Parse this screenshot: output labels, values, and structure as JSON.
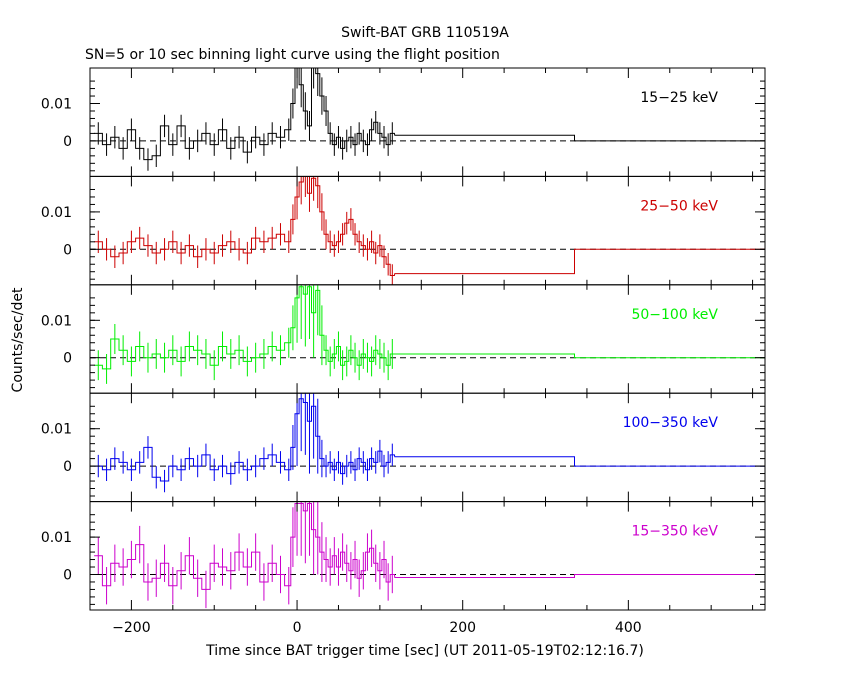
{
  "title": "Swift-BAT GRB 110519A",
  "subtitle": "SN=5 or 10 sec binning light curve using the flight position",
  "ylabel": "Counts/sec/det",
  "xlabel": "Time since BAT trigger time [sec] (UT 2011-05-19T02:12:16.7)",
  "chart_data": {
    "type": "line",
    "title": "Swift-BAT GRB 110519A",
    "subtitle": "SN=5 or 10 sec binning light curve using the flight position",
    "xlabel": "Time since BAT trigger time [sec] (UT 2011-05-19T02:12:16.7)",
    "ylabel": "Counts/sec/det",
    "xlim": [
      -250,
      565
    ],
    "ylim": [
      -0.0095,
      0.0195
    ],
    "x_ticks": [
      -200,
      0,
      200,
      400
    ],
    "y_ticks": [
      0,
      0.01
    ],
    "y_tick_labels": [
      "0",
      "0.01"
    ],
    "reference_line": 0,
    "panels": [
      {
        "name": "15-25 keV",
        "label": "15−25 keV",
        "color": "#000000",
        "long_bins": [
          [
            118,
            335,
            0.0015
          ],
          [
            335,
            565,
            0.0
          ]
        ],
        "x": [
          -240,
          -230,
          -220,
          -210,
          -200,
          -190,
          -180,
          -170,
          -160,
          -150,
          -140,
          -130,
          -120,
          -110,
          -100,
          -90,
          -80,
          -70,
          -60,
          -50,
          -40,
          -30,
          -20,
          -10,
          -5,
          0,
          5,
          10,
          15,
          20,
          25,
          30,
          35,
          40,
          45,
          50,
          55,
          60,
          65,
          70,
          75,
          80,
          85,
          90,
          95,
          100,
          105,
          110,
          115
        ],
        "y": [
          0.002,
          -0.001,
          0.001,
          -0.002,
          0.003,
          -0.002,
          -0.005,
          -0.004,
          0.004,
          -0.001,
          0.004,
          -0.002,
          0.0,
          0.002,
          -0.001,
          0.003,
          -0.002,
          0.001,
          -0.003,
          0.001,
          -0.001,
          0.002,
          0.001,
          0.003,
          0.01,
          0.02,
          0.015,
          0.008,
          0.004,
          0.02,
          0.018,
          0.012,
          0.008,
          0.002,
          -0.001,
          0.001,
          -0.002,
          0.0,
          0.001,
          -0.001,
          0.002,
          0.0,
          -0.001,
          0.003,
          0.005,
          0.002,
          0.001,
          -0.001,
          0.002
        ],
        "err": [
          0.003,
          0.003,
          0.003,
          0.003,
          0.003,
          0.003,
          0.003,
          0.003,
          0.003,
          0.003,
          0.003,
          0.003,
          0.003,
          0.003,
          0.003,
          0.003,
          0.003,
          0.003,
          0.003,
          0.003,
          0.003,
          0.003,
          0.003,
          0.003,
          0.004,
          0.006,
          0.006,
          0.005,
          0.004,
          0.006,
          0.006,
          0.005,
          0.004,
          0.003,
          0.003,
          0.003,
          0.003,
          0.003,
          0.003,
          0.003,
          0.003,
          0.003,
          0.003,
          0.003,
          0.003,
          0.003,
          0.003,
          0.003,
          0.003
        ]
      },
      {
        "name": "25-50 keV",
        "label": "25−50 keV",
        "color": "#cc0000",
        "long_bins": [
          [
            118,
            335,
            -0.0065
          ],
          [
            335,
            565,
            0.0
          ]
        ],
        "x": [
          -240,
          -230,
          -220,
          -210,
          -200,
          -190,
          -180,
          -170,
          -160,
          -150,
          -140,
          -130,
          -120,
          -110,
          -100,
          -90,
          -80,
          -70,
          -60,
          -50,
          -40,
          -30,
          -20,
          -10,
          -5,
          0,
          5,
          10,
          15,
          20,
          25,
          30,
          35,
          40,
          45,
          50,
          55,
          60,
          65,
          70,
          75,
          80,
          85,
          90,
          95,
          100,
          105,
          110,
          115
        ],
        "y": [
          0.002,
          0.0,
          -0.002,
          -0.001,
          0.002,
          0.003,
          0.001,
          -0.001,
          0.0,
          0.002,
          -0.001,
          0.001,
          -0.002,
          0.0,
          -0.001,
          0.001,
          0.002,
          0.0,
          -0.001,
          0.003,
          0.002,
          0.003,
          0.004,
          0.002,
          0.008,
          0.014,
          0.018,
          0.02,
          0.015,
          0.019,
          0.017,
          0.01,
          0.004,
          0.002,
          0.001,
          0.002,
          0.004,
          0.007,
          0.008,
          0.004,
          0.002,
          0.001,
          0.0,
          0.002,
          -0.001,
          0.001,
          -0.002,
          -0.004,
          -0.007
        ],
        "err": [
          0.003,
          0.003,
          0.003,
          0.003,
          0.003,
          0.003,
          0.003,
          0.003,
          0.003,
          0.003,
          0.003,
          0.003,
          0.003,
          0.003,
          0.003,
          0.003,
          0.003,
          0.003,
          0.003,
          0.003,
          0.003,
          0.003,
          0.003,
          0.003,
          0.004,
          0.006,
          0.006,
          0.006,
          0.005,
          0.006,
          0.006,
          0.005,
          0.004,
          0.003,
          0.003,
          0.003,
          0.003,
          0.003,
          0.003,
          0.003,
          0.003,
          0.003,
          0.003,
          0.003,
          0.003,
          0.003,
          0.003,
          0.003,
          0.003
        ]
      },
      {
        "name": "50-100 keV",
        "label": "50−100 keV",
        "color": "#00ee00",
        "long_bins": [
          [
            118,
            335,
            0.001
          ],
          [
            335,
            565,
            0.0
          ]
        ],
        "x": [
          -240,
          -230,
          -220,
          -210,
          -200,
          -190,
          -180,
          -170,
          -160,
          -150,
          -140,
          -130,
          -120,
          -110,
          -100,
          -90,
          -80,
          -70,
          -60,
          -50,
          -40,
          -30,
          -20,
          -10,
          -5,
          0,
          5,
          10,
          15,
          20,
          25,
          30,
          35,
          40,
          45,
          50,
          55,
          60,
          65,
          70,
          75,
          80,
          85,
          90,
          95,
          100,
          105,
          110,
          115
        ],
        "y": [
          -0.002,
          -0.003,
          0.005,
          0.002,
          -0.001,
          0.003,
          0.0,
          0.001,
          0.0,
          0.002,
          -0.001,
          0.003,
          0.002,
          0.001,
          -0.002,
          0.003,
          0.001,
          0.002,
          -0.001,
          0.0,
          0.001,
          0.003,
          0.002,
          0.004,
          0.008,
          0.016,
          0.019,
          0.017,
          0.019,
          0.012,
          0.018,
          0.006,
          0.002,
          -0.001,
          0.001,
          0.003,
          -0.002,
          -0.001,
          0.002,
          0.0,
          -0.002,
          0.001,
          0.0,
          -0.001,
          0.002,
          0.001,
          0.0,
          -0.002,
          0.001
        ],
        "err": [
          0.004,
          0.004,
          0.004,
          0.004,
          0.004,
          0.004,
          0.004,
          0.004,
          0.004,
          0.004,
          0.004,
          0.004,
          0.004,
          0.004,
          0.004,
          0.004,
          0.004,
          0.004,
          0.004,
          0.004,
          0.004,
          0.004,
          0.004,
          0.004,
          0.006,
          0.012,
          0.014,
          0.014,
          0.014,
          0.012,
          0.012,
          0.008,
          0.004,
          0.004,
          0.004,
          0.004,
          0.004,
          0.004,
          0.004,
          0.004,
          0.004,
          0.004,
          0.004,
          0.004,
          0.004,
          0.004,
          0.004,
          0.004,
          0.004
        ]
      },
      {
        "name": "100-350 keV",
        "label": "100−350 keV",
        "color": "#0000ee",
        "long_bins": [
          [
            118,
            335,
            0.0025
          ],
          [
            335,
            565,
            0.0
          ]
        ],
        "x": [
          -240,
          -230,
          -220,
          -210,
          -200,
          -190,
          -180,
          -170,
          -160,
          -150,
          -140,
          -130,
          -120,
          -110,
          -100,
          -90,
          -80,
          -70,
          -60,
          -50,
          -40,
          -30,
          -20,
          -10,
          -5,
          0,
          5,
          10,
          15,
          20,
          25,
          30,
          35,
          40,
          45,
          50,
          55,
          60,
          65,
          70,
          75,
          80,
          85,
          90,
          95,
          100,
          105,
          110,
          115
        ],
        "y": [
          0.0,
          -0.001,
          0.002,
          0.001,
          -0.001,
          0.001,
          0.005,
          -0.003,
          -0.004,
          0.0,
          -0.001,
          0.002,
          0.0,
          0.003,
          -0.001,
          0.0,
          -0.002,
          0.001,
          -0.001,
          0.0,
          0.002,
          0.003,
          0.001,
          -0.001,
          0.005,
          0.014,
          0.018,
          0.017,
          0.012,
          0.016,
          0.008,
          0.002,
          0.0,
          0.001,
          -0.001,
          0.001,
          -0.002,
          0.0,
          0.001,
          -0.001,
          0.002,
          0.001,
          -0.001,
          0.002,
          0.001,
          0.004,
          0.0,
          0.001,
          0.003
        ],
        "err": [
          0.003,
          0.003,
          0.003,
          0.003,
          0.003,
          0.003,
          0.003,
          0.003,
          0.003,
          0.003,
          0.003,
          0.003,
          0.003,
          0.003,
          0.003,
          0.003,
          0.003,
          0.003,
          0.003,
          0.003,
          0.003,
          0.003,
          0.003,
          0.003,
          0.006,
          0.014,
          0.014,
          0.014,
          0.014,
          0.014,
          0.01,
          0.005,
          0.003,
          0.003,
          0.003,
          0.003,
          0.003,
          0.003,
          0.003,
          0.003,
          0.003,
          0.003,
          0.003,
          0.003,
          0.003,
          0.003,
          0.003,
          0.003,
          0.003
        ]
      },
      {
        "name": "15-350 keV",
        "label": "15−350 keV",
        "color": "#cc00cc",
        "long_bins": [
          [
            118,
            335,
            -0.0008
          ],
          [
            335,
            565,
            0.0
          ]
        ],
        "x": [
          -240,
          -230,
          -220,
          -210,
          -200,
          -190,
          -180,
          -170,
          -160,
          -150,
          -140,
          -130,
          -120,
          -110,
          -100,
          -90,
          -80,
          -70,
          -60,
          -50,
          -40,
          -30,
          -20,
          -10,
          -5,
          0,
          5,
          10,
          15,
          20,
          25,
          30,
          35,
          40,
          45,
          50,
          55,
          60,
          65,
          70,
          75,
          80,
          85,
          90,
          95,
          100,
          105,
          110,
          115
        ],
        "y": [
          0.005,
          -0.003,
          0.003,
          0.002,
          0.004,
          0.008,
          -0.002,
          -0.001,
          0.003,
          -0.003,
          0.001,
          0.005,
          -0.001,
          -0.004,
          0.003,
          0.002,
          0.001,
          0.006,
          0.002,
          0.006,
          -0.002,
          0.003,
          0.0,
          -0.003,
          0.01,
          0.019,
          0.019,
          0.017,
          0.019,
          0.012,
          0.01,
          0.006,
          0.004,
          0.002,
          0.005,
          0.002,
          0.006,
          0.003,
          0.001,
          0.004,
          -0.001,
          0.001,
          0.006,
          0.007,
          0.003,
          0.001,
          0.004,
          -0.002,
          0.0
        ],
        "err": [
          0.005,
          0.005,
          0.005,
          0.005,
          0.005,
          0.005,
          0.005,
          0.005,
          0.005,
          0.005,
          0.005,
          0.005,
          0.005,
          0.005,
          0.005,
          0.005,
          0.005,
          0.005,
          0.005,
          0.005,
          0.005,
          0.005,
          0.005,
          0.005,
          0.008,
          0.014,
          0.014,
          0.014,
          0.014,
          0.012,
          0.01,
          0.008,
          0.006,
          0.005,
          0.005,
          0.005,
          0.005,
          0.005,
          0.005,
          0.005,
          0.005,
          0.005,
          0.005,
          0.005,
          0.005,
          0.005,
          0.005,
          0.005,
          0.005
        ]
      }
    ]
  }
}
